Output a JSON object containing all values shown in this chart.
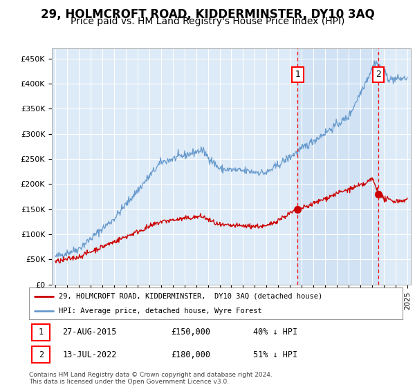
{
  "title": "29, HOLMCROFT ROAD, KIDDERMINSTER, DY10 3AQ",
  "subtitle": "Price paid vs. HM Land Registry's House Price Index (HPI)",
  "ylabel_ticks": [
    "£0",
    "£50K",
    "£100K",
    "£150K",
    "£200K",
    "£250K",
    "£300K",
    "£350K",
    "£400K",
    "£450K"
  ],
  "ytick_values": [
    0,
    50000,
    100000,
    150000,
    200000,
    250000,
    300000,
    350000,
    400000,
    450000
  ],
  "ylim": [
    0,
    470000
  ],
  "xlim_start": 1994.7,
  "xlim_end": 2025.3,
  "x_ticks": [
    1995,
    1996,
    1997,
    1998,
    1999,
    2000,
    2001,
    2002,
    2003,
    2004,
    2005,
    2006,
    2007,
    2008,
    2009,
    2010,
    2011,
    2012,
    2013,
    2014,
    2015,
    2016,
    2017,
    2018,
    2019,
    2020,
    2021,
    2022,
    2023,
    2024,
    2025
  ],
  "background_color": "#ddeaf7",
  "outer_bg_color": "#ffffff",
  "red_line_color": "#cc0000",
  "blue_line_color": "#6699cc",
  "marker1_x": 2015.65,
  "marker1_y": 150000,
  "marker2_x": 2022.53,
  "marker2_y": 180000,
  "legend_label1": "29, HOLMCROFT ROAD, KIDDERMINSTER,  DY10 3AQ (detached house)",
  "legend_label2": "HPI: Average price, detached house, Wyre Forest",
  "footnote": "Contains HM Land Registry data © Crown copyright and database right 2024.\nThis data is licensed under the Open Government Licence v3.0.",
  "title_fontsize": 12,
  "subtitle_fontsize": 10
}
